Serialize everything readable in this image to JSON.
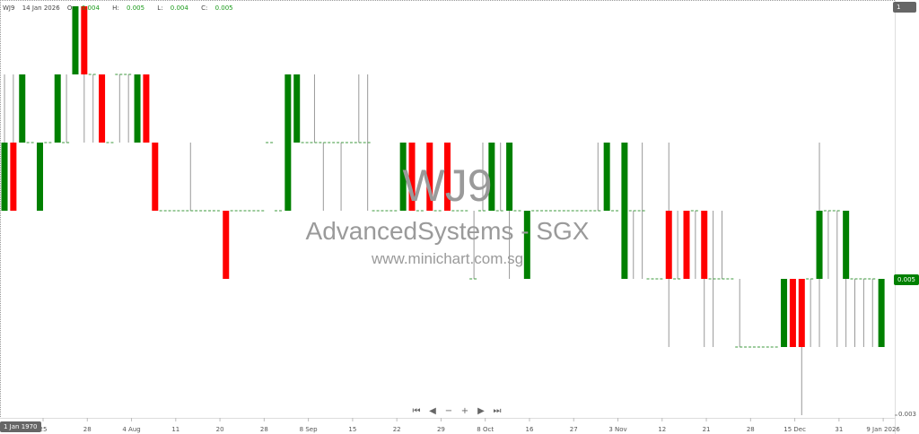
{
  "header": {
    "symbol": "WJ9",
    "date": "14 Jan 2026",
    "o_label": "O:",
    "o": "0.004",
    "h_label": "H:",
    "h": "0.005",
    "l_label": "L:",
    "l": "0.004",
    "c_label": "C:",
    "c": "0.005"
  },
  "watermark": {
    "symbol": "WJ9",
    "company": "AdvancedSystems - SGX",
    "site": "www.minichart.com.sg"
  },
  "badges": {
    "top": "1",
    "last_price": "0.005",
    "crosshair_date": "1 Jan 1970"
  },
  "nav": {
    "first": "⏮",
    "prev": "◀",
    "zoom_out": "−",
    "zoom_in": "+",
    "next": "▶",
    "last": "⏭"
  },
  "colors": {
    "up": "#008000",
    "down": "#ff0000",
    "wick": "#999999",
    "doji": "#3c9a3c"
  },
  "chart_data": {
    "type": "candlestick",
    "ylim": [
      0.003,
      0.009
    ],
    "y_tick_labels": [
      "0.003"
    ],
    "x_tick_labels": [
      "25",
      "28",
      "4 Aug",
      "11",
      "20",
      "28",
      "8 Sep",
      "15",
      "22",
      "29",
      "8 Oct",
      "16",
      "27",
      "3 Nov",
      "12",
      "21",
      "28",
      "15 Dec",
      "31",
      "9 Jan 2026"
    ],
    "ohlc_fields": [
      "open",
      "high",
      "low",
      "close"
    ],
    "candles": [
      [
        0.006,
        0.008,
        0.006,
        0.007
      ],
      [
        0.007,
        0.008,
        0.006,
        0.006
      ],
      [
        0.007,
        0.008,
        0.007,
        0.008
      ],
      [
        0.007,
        0.007,
        0.007,
        0.007
      ],
      [
        0.006,
        0.007,
        0.006,
        0.007
      ],
      [
        0.007,
        0.007,
        0.007,
        0.007
      ],
      [
        0.007,
        0.008,
        0.007,
        0.008
      ],
      [
        0.007,
        0.008,
        0.007,
        0.007
      ],
      [
        0.008,
        0.009,
        0.008,
        0.009
      ],
      [
        0.009,
        0.009,
        0.007,
        0.008
      ],
      [
        0.008,
        0.008,
        0.007,
        0.008
      ],
      [
        0.008,
        0.008,
        0.007,
        0.007
      ],
      [
        0.007,
        0.007,
        0.007,
        0.007
      ],
      [
        0.008,
        0.008,
        0.007,
        0.008
      ],
      [
        0.008,
        0.008,
        0.007,
        0.008
      ],
      [
        0.007,
        0.008,
        0.007,
        0.008
      ],
      [
        0.008,
        0.008,
        0.007,
        0.007
      ],
      [
        0.007,
        0.007,
        0.006,
        0.006
      ],
      [
        0.006,
        0.006,
        0.006,
        0.006
      ],
      [
        0.006,
        0.006,
        0.006,
        0.006
      ],
      [
        0.006,
        0.006,
        0.006,
        0.006
      ],
      [
        0.006,
        0.007,
        0.006,
        0.006
      ],
      [
        0.006,
        0.006,
        0.006,
        0.006
      ],
      [
        0.006,
        0.006,
        0.006,
        0.006
      ],
      [
        0.006,
        0.006,
        0.006,
        0.006
      ],
      [
        0.006,
        0.006,
        0.005,
        0.005
      ],
      [
        0.006,
        0.006,
        0.006,
        0.006
      ],
      [
        0.006,
        0.006,
        0.006,
        0.006
      ],
      [
        0.006,
        0.006,
        0.006,
        0.006
      ],
      [
        0.006,
        0.006,
        0.006,
        0.006
      ],
      [
        0.007,
        0.007,
        0.007,
        0.007
      ],
      [
        0.006,
        0.006,
        0.006,
        0.006
      ],
      [
        0.006,
        0.008,
        0.006,
        0.008
      ],
      [
        0.007,
        0.008,
        0.007,
        0.008
      ],
      [
        0.007,
        0.007,
        0.007,
        0.007
      ],
      [
        0.007,
        0.008,
        0.007,
        0.007
      ],
      [
        0.007,
        0.007,
        0.006,
        0.007
      ],
      [
        0.007,
        0.007,
        0.007,
        0.007
      ],
      [
        0.007,
        0.007,
        0.006,
        0.007
      ],
      [
        0.007,
        0.007,
        0.007,
        0.007
      ],
      [
        0.007,
        0.008,
        0.007,
        0.007
      ],
      [
        0.007,
        0.008,
        0.006,
        0.007
      ],
      [
        0.006,
        0.006,
        0.006,
        0.006
      ],
      [
        0.006,
        0.006,
        0.006,
        0.006
      ],
      [
        0.006,
        0.006,
        0.006,
        0.006
      ],
      [
        0.006,
        0.007,
        0.006,
        0.007
      ],
      [
        0.007,
        0.007,
        0.006,
        0.006
      ],
      [
        0.006,
        0.006,
        0.006,
        0.006
      ],
      [
        0.007,
        0.007,
        0.006,
        0.006
      ],
      [
        0.006,
        0.006,
        0.006,
        0.006
      ],
      [
        0.007,
        0.007,
        0.006,
        0.006
      ],
      [
        0.006,
        0.006,
        0.006,
        0.006
      ],
      [
        0.006,
        0.006,
        0.006,
        0.006
      ],
      [
        0.005,
        0.006,
        0.005,
        0.005
      ],
      [
        0.006,
        0.007,
        0.006,
        0.006
      ],
      [
        0.006,
        0.007,
        0.006,
        0.007
      ],
      [
        0.006,
        0.007,
        0.006,
        0.006
      ],
      [
        0.006,
        0.007,
        0.005,
        0.007
      ],
      [
        0.006,
        0.006,
        0.006,
        0.006
      ],
      [
        0.005,
        0.006,
        0.005,
        0.006
      ],
      [
        0.006,
        0.006,
        0.006,
        0.006
      ],
      [
        0.006,
        0.006,
        0.006,
        0.006
      ],
      [
        0.006,
        0.006,
        0.006,
        0.006
      ],
      [
        0.006,
        0.006,
        0.006,
        0.006
      ],
      [
        0.006,
        0.006,
        0.006,
        0.006
      ],
      [
        0.006,
        0.006,
        0.006,
        0.006
      ],
      [
        0.006,
        0.006,
        0.006,
        0.006
      ],
      [
        0.006,
        0.007,
        0.006,
        0.006
      ],
      [
        0.006,
        0.007,
        0.006,
        0.007
      ],
      [
        0.006,
        0.006,
        0.006,
        0.006
      ],
      [
        0.005,
        0.007,
        0.005,
        0.007
      ],
      [
        0.006,
        0.006,
        0.005,
        0.006
      ],
      [
        0.006,
        0.007,
        0.005,
        0.006
      ],
      [
        0.005,
        0.005,
        0.005,
        0.005
      ],
      [
        0.005,
        0.005,
        0.005,
        0.005
      ],
      [
        0.006,
        0.007,
        0.004,
        0.005
      ],
      [
        0.005,
        0.006,
        0.005,
        0.005
      ],
      [
        0.006,
        0.006,
        0.005,
        0.005
      ],
      [
        0.006,
        0.006,
        0.005,
        0.006
      ],
      [
        0.006,
        0.006,
        0.004,
        0.005
      ],
      [
        0.005,
        0.006,
        0.004,
        0.005
      ],
      [
        0.005,
        0.006,
        0.005,
        0.005
      ],
      [
        0.005,
        0.005,
        0.005,
        0.005
      ],
      [
        0.004,
        0.005,
        0.004,
        0.004
      ],
      [
        0.004,
        0.004,
        0.004,
        0.004
      ],
      [
        0.004,
        0.004,
        0.004,
        0.004
      ],
      [
        0.004,
        0.004,
        0.004,
        0.004
      ],
      [
        0.004,
        0.004,
        0.004,
        0.004
      ],
      [
        0.004,
        0.005,
        0.004,
        0.005
      ],
      [
        0.005,
        0.005,
        0.004,
        0.004
      ],
      [
        0.005,
        0.005,
        0.003,
        0.004
      ],
      [
        0.005,
        0.005,
        0.004,
        0.005
      ],
      [
        0.005,
        0.007,
        0.004,
        0.006
      ],
      [
        0.006,
        0.006,
        0.005,
        0.006
      ],
      [
        0.006,
        0.006,
        0.004,
        0.006
      ],
      [
        0.005,
        0.006,
        0.004,
        0.006
      ],
      [
        0.005,
        0.005,
        0.004,
        0.005
      ],
      [
        0.005,
        0.005,
        0.004,
        0.005
      ],
      [
        0.005,
        0.005,
        0.004,
        0.005
      ],
      [
        0.004,
        0.005,
        0.004,
        0.005
      ]
    ]
  }
}
